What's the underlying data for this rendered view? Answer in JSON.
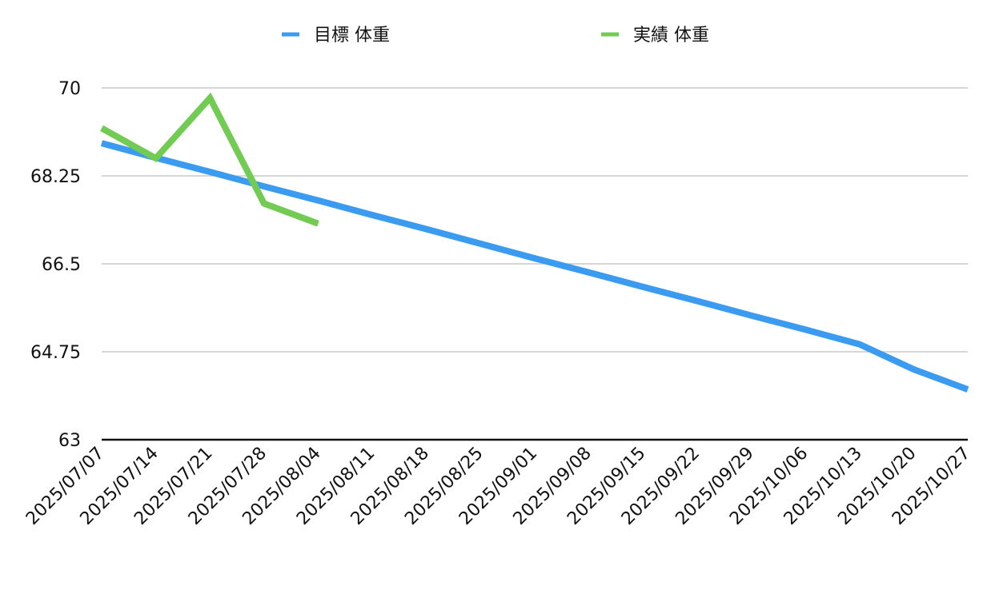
{
  "chart_data": {
    "type": "line",
    "title": "",
    "xlabel": "",
    "ylabel": "",
    "categories": [
      "2025/07/07",
      "2025/07/14",
      "2025/07/21",
      "2025/07/28",
      "2025/08/04",
      "2025/08/11",
      "2025/08/18",
      "2025/08/25",
      "2025/09/01",
      "2025/09/08",
      "2025/09/15",
      "2025/09/22",
      "2025/09/29",
      "2025/10/06",
      "2025/10/13",
      "2025/10/20",
      "2025/10/27"
    ],
    "ylim": [
      63,
      70
    ],
    "yticks": [
      "63",
      "64.75",
      "66.5",
      "68.25",
      "70"
    ],
    "grid": true,
    "legend_position": "top",
    "series": [
      {
        "name": "目標 体重",
        "color": "#3B9BF0",
        "values": [
          68.9,
          68.61,
          68.33,
          68.04,
          67.76,
          67.47,
          67.19,
          66.9,
          66.61,
          66.33,
          66.04,
          65.76,
          65.47,
          65.19,
          64.9,
          64.4,
          64.0
        ]
      },
      {
        "name": "実績 体重",
        "color": "#72CB53",
        "values": [
          69.2,
          68.6,
          69.8,
          67.7,
          67.3,
          null,
          null,
          null,
          null,
          null,
          null,
          null,
          null,
          null,
          null,
          null,
          null
        ]
      }
    ]
  }
}
